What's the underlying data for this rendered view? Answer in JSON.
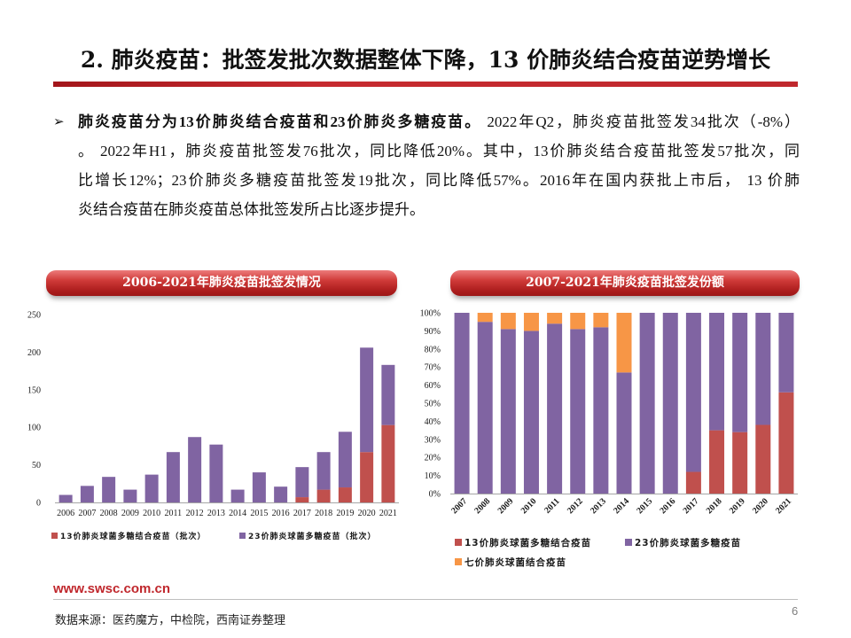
{
  "slide": {
    "title": "2. 肺炎疫苗：批签发批次数据整体下降，13 价肺炎结合疫苗逆势增长",
    "bullet": {
      "marker": "➢",
      "line1_bold": "肺炎疫苗分为13价肺炎结合疫苗和23价肺炎多糖疫苗。",
      "line1_rest": " 2022年Q2，肺炎疫苗批签发34批次（-8%）",
      "line2": "。 2022年H1，肺炎疫苗批签发76批次，同比降低20%。其中，13价肺炎结合疫苗批签发57批次，同",
      "line3": "比增长12%；23价肺炎多糖疫苗批签发19批次，同比降低57%。2016年在国内获批上市后， 13 价肺",
      "line4": "炎结合疫苗在肺炎疫苗总体批签发所占比逐步提升。"
    }
  },
  "theme": {
    "accent_red": "#c0282d"
  },
  "footer": {
    "website": "www.swsc.com.cn",
    "page_number": "6",
    "source": "数据来源：医药魔方，中检院，西南证券整理"
  },
  "chart_data": [
    {
      "type": "bar",
      "stacked": true,
      "title": "2006-2021年肺炎疫苗批签发情况",
      "categories": [
        "2006",
        "2007",
        "2008",
        "2009",
        "2010",
        "2011",
        "2012",
        "2013",
        "2014",
        "2015",
        "2016",
        "2017",
        "2018",
        "2019",
        "2020",
        "2021"
      ],
      "ylim": [
        0,
        250
      ],
      "yticks": [
        0,
        50,
        100,
        150,
        200,
        250
      ],
      "ytick_labels": [
        "0",
        "50",
        "100",
        "150",
        "200",
        "250"
      ],
      "grid": false,
      "legend_position": "bottom",
      "series": [
        {
          "name": "13价肺炎球菌多糖结合疫苗（批次）",
          "color": "#c0504d",
          "values": [
            0,
            0,
            0,
            0,
            0,
            0,
            0,
            0,
            0,
            0,
            0,
            7,
            17,
            20,
            67,
            103
          ]
        },
        {
          "name": "23价肺炎球菌多糖疫苗（批次）",
          "color": "#8064a2",
          "values": [
            10,
            22,
            34,
            17,
            37,
            67,
            87,
            77,
            17,
            40,
            21,
            40,
            50,
            74,
            139,
            80
          ]
        }
      ]
    },
    {
      "type": "bar",
      "stacked": true,
      "percent_stacked": true,
      "title": "2007-2021年肺炎疫苗批签发份额",
      "categories": [
        "2007",
        "2008",
        "2009",
        "2010",
        "2011",
        "2012",
        "2013",
        "2014",
        "2015",
        "2016",
        "2017",
        "2018",
        "2019",
        "2020",
        "2021"
      ],
      "ylim": [
        0,
        100
      ],
      "yticks": [
        0,
        10,
        20,
        30,
        40,
        50,
        60,
        70,
        80,
        90,
        100
      ],
      "ytick_labels": [
        "0%",
        "10%",
        "20%",
        "30%",
        "40%",
        "50%",
        "60%",
        "70%",
        "80%",
        "90%",
        "100%"
      ],
      "grid": false,
      "legend_position": "bottom",
      "series": [
        {
          "name": "13价肺炎球菌多糖结合疫苗",
          "color": "#c0504d",
          "values": [
            0,
            0,
            0,
            0,
            0,
            0,
            0,
            0,
            0,
            0,
            12,
            35,
            34,
            38,
            56
          ]
        },
        {
          "name": "23价肺炎球菌多糖疫苗",
          "color": "#8064a2",
          "values": [
            100,
            95,
            91,
            90,
            94,
            91,
            92,
            67,
            100,
            100,
            88,
            65,
            66,
            62,
            44
          ]
        },
        {
          "name": "七价肺炎球菌结合疫苗",
          "color": "#f79646",
          "values": [
            0,
            5,
            9,
            10,
            6,
            9,
            8,
            33,
            0,
            0,
            0,
            0,
            0,
            0,
            0
          ]
        }
      ]
    }
  ]
}
